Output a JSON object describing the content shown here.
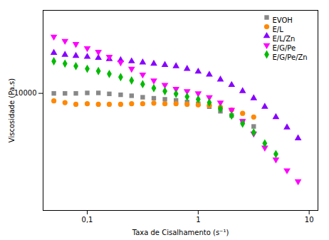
{
  "chart_data": {
    "type": "scatter",
    "xlabel": "Taxa de Cisalhamento (s⁻¹)",
    "ylabel": "Viscosidade (Pa.s)",
    "log": true,
    "xlim": [
      0.04,
      12
    ],
    "ylim": [
      800,
      60000
    ],
    "xticks": [
      {
        "value": 0.1,
        "label": "0,1"
      },
      1,
      10
    ],
    "yticks": [
      10000
    ],
    "grid": false,
    "legend": "upper right",
    "series": [
      {
        "name": "EVOH",
        "color": "#888888",
        "marker": "square",
        "x": [
          0.05,
          0.063,
          0.079,
          0.1,
          0.126,
          0.158,
          0.2,
          0.251,
          0.316,
          0.398,
          0.501,
          0.631,
          0.794,
          1.0,
          1.259,
          1.585,
          2.0,
          2.512,
          3.162
        ],
        "values": [
          10000,
          10000,
          10000,
          10100,
          10100,
          9900,
          9700,
          9500,
          9200,
          9000,
          8800,
          8600,
          8300,
          8000,
          7500,
          6800,
          6200,
          5500,
          4900
        ]
      },
      {
        "name": "E/L",
        "color": "#ff8800",
        "marker": "circle",
        "x": [
          0.05,
          0.063,
          0.079,
          0.1,
          0.126,
          0.158,
          0.2,
          0.251,
          0.316,
          0.398,
          0.501,
          0.631,
          0.794,
          1.0,
          1.259,
          1.585,
          2.0,
          2.512,
          3.162
        ],
        "values": [
          8500,
          8200,
          7900,
          8000,
          7900,
          7900,
          7900,
          8000,
          8000,
          8100,
          8000,
          8000,
          7900,
          7800,
          7700,
          7400,
          7000,
          6500,
          6000
        ]
      },
      {
        "name": "E/L/Zn",
        "color": "#8800ff",
        "marker": "triangle-up",
        "x": [
          0.05,
          0.063,
          0.079,
          0.1,
          0.126,
          0.158,
          0.2,
          0.251,
          0.316,
          0.398,
          0.501,
          0.631,
          0.794,
          1.0,
          1.259,
          1.585,
          2.0,
          2.512,
          3.162,
          3.981,
          5.012,
          6.31,
          7.943
        ],
        "values": [
          24000,
          23000,
          22500,
          22000,
          21500,
          21000,
          20500,
          20000,
          19500,
          19000,
          18500,
          18000,
          17000,
          16000,
          15000,
          13500,
          12000,
          10500,
          9000,
          7500,
          6000,
          4800,
          3800
        ]
      },
      {
        "name": "E/G/Pe",
        "color": "#ff00ff",
        "marker": "triangle-down",
        "x": [
          0.05,
          0.063,
          0.079,
          0.1,
          0.126,
          0.158,
          0.2,
          0.251,
          0.316,
          0.398,
          0.501,
          0.631,
          0.794,
          1.0,
          1.259,
          1.585,
          2.0,
          2.512,
          3.162,
          3.981,
          5.012,
          6.31,
          7.943
        ],
        "values": [
          34000,
          31000,
          29000,
          26500,
          24500,
          22000,
          19500,
          17000,
          15000,
          13200,
          12000,
          11000,
          10500,
          10000,
          9200,
          8200,
          7000,
          5500,
          4200,
          3100,
          2400,
          1900,
          1500
        ]
      },
      {
        "name": "E/G/Pe/Zn",
        "color": "#00bb00",
        "marker": "diamond",
        "x": [
          0.05,
          0.063,
          0.079,
          0.1,
          0.126,
          0.158,
          0.2,
          0.251,
          0.316,
          0.398,
          0.501,
          0.631,
          0.794,
          1.0,
          1.259,
          1.585,
          2.0,
          2.512,
          3.162,
          3.981,
          5.012
        ],
        "values": [
          20000,
          19000,
          18000,
          17000,
          16200,
          15200,
          14200,
          13200,
          12200,
          11200,
          10500,
          9900,
          9300,
          8800,
          8200,
          7200,
          6200,
          5200,
          4300,
          3400,
          2700
        ]
      }
    ]
  }
}
